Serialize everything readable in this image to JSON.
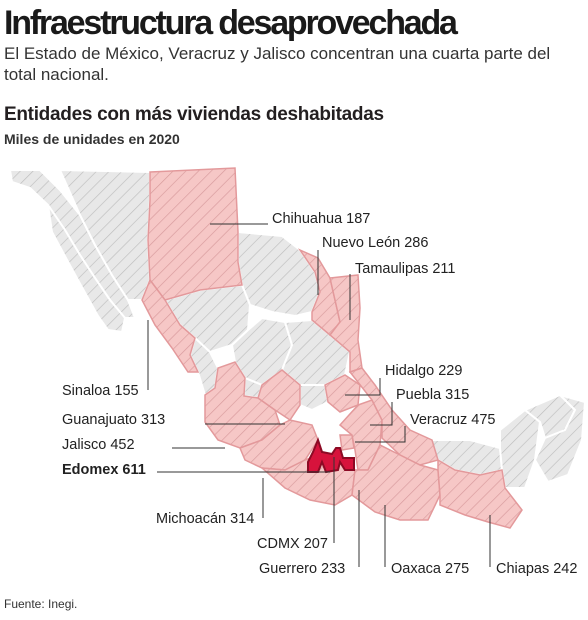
{
  "header": {
    "title": "Infraestructura desaprovechada",
    "subtitle": "El Estado de México, Veracruz y Jalisco concentran una cuarta parte del total nacional.",
    "section_title": "Entidades con más viviendas deshabitadas",
    "section_subtitle": "Miles de unidades en 2020"
  },
  "colors": {
    "highlight_fill": "#f6c7c6",
    "highlight_border": "#e3999b",
    "hatch": "#d79a9c",
    "other_fill": "#e8e8e8",
    "other_hatch": "#bdbdbd",
    "edomex": "#d7133c",
    "leader_line": "#333333"
  },
  "map_data": {
    "unit": "miles de unidades",
    "year": "2020",
    "states": [
      {
        "id": "chihuahua",
        "label": "Chihuahua 187",
        "name": "Chihuahua",
        "value": 187
      },
      {
        "id": "nuevo_leon",
        "label": "Nuevo León 286",
        "name": "Nuevo León",
        "value": 286
      },
      {
        "id": "tamaulipas",
        "label": "Tamaulipas 211",
        "name": "Tamaulipas",
        "value": 211
      },
      {
        "id": "sinaloa",
        "label": "Sinaloa 155",
        "name": "Sinaloa",
        "value": 155
      },
      {
        "id": "hidalgo",
        "label": "Hidalgo 229",
        "name": "Hidalgo",
        "value": 229
      },
      {
        "id": "puebla",
        "label": "Puebla 315",
        "name": "Puebla",
        "value": 315
      },
      {
        "id": "guanajuato",
        "label": "Guanajuato 313",
        "name": "Guanajuato",
        "value": 313
      },
      {
        "id": "veracruz",
        "label": "Veracruz 475",
        "name": "Veracruz",
        "value": 475
      },
      {
        "id": "jalisco",
        "label": "Jalisco 452",
        "name": "Jalisco",
        "value": 452
      },
      {
        "id": "edomex",
        "label": "Edomex 611",
        "name": "Edomex",
        "value": 611,
        "emphasis": true
      },
      {
        "id": "michoacan",
        "label": "Michoacán 314",
        "name": "Michoacán",
        "value": 314
      },
      {
        "id": "cdmx",
        "label": "CDMX 207",
        "name": "CDMX",
        "value": 207
      },
      {
        "id": "guerrero",
        "label": "Guerrero 233",
        "name": "Guerrero",
        "value": 233
      },
      {
        "id": "oaxaca",
        "label": "Oaxaca 275",
        "name": "Oaxaca",
        "value": 275
      },
      {
        "id": "chiapas",
        "label": "Chiapas 242",
        "name": "Chiapas",
        "value": 242
      }
    ]
  },
  "footer": {
    "source": "Fuente: Inegi."
  }
}
